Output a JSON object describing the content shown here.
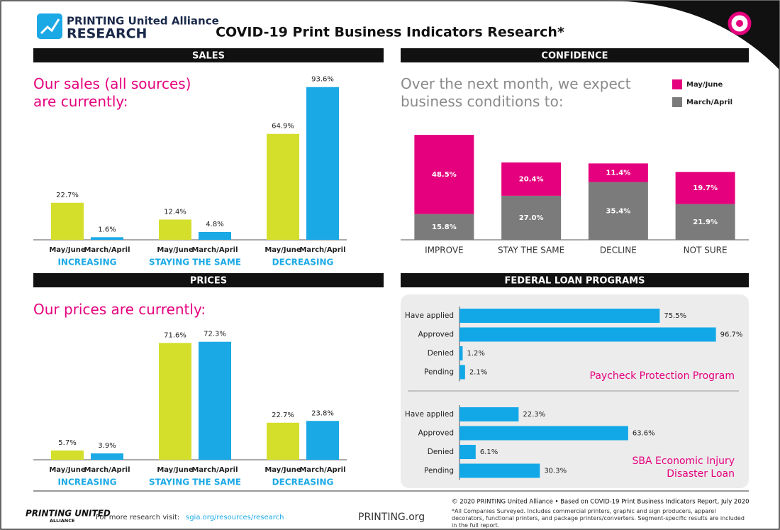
{
  "header": {
    "logo_top": "PRINTING United Alliance",
    "logo_bottom": "RESEARCH",
    "title": "COVID-19 Print Business Indicators Research*"
  },
  "chart_data": [
    {
      "type": "grouped_bar",
      "title": "SALES",
      "subtitle": "Our sales (all sources) are currently:",
      "categories": [
        "INCREASING",
        "STAYING THE SAME",
        "DECREASING"
      ],
      "series": [
        {
          "name": "May/June",
          "color": "#d4df2c",
          "values": [
            22.7,
            12.4,
            64.9
          ],
          "value_labels": [
            "22.7%",
            "12.4%",
            "64.9%"
          ]
        },
        {
          "name": "March/April",
          "color": "#1ba9e6",
          "values": [
            1.6,
            4.8,
            93.6
          ],
          "value_labels": [
            "1.6%",
            "4.8%",
            "93.6%"
          ]
        }
      ]
    },
    {
      "type": "grouped_bar",
      "title": "PRICES",
      "subtitle": "Our prices are currently:",
      "categories": [
        "INCREASING",
        "STAYING THE SAME",
        "DECREASING"
      ],
      "series": [
        {
          "name": "May/June",
          "color": "#d4df2c",
          "values": [
            5.7,
            71.6,
            22.7
          ],
          "value_labels": [
            "5.7%",
            "71.6%",
            "22.7%"
          ]
        },
        {
          "name": "March/April",
          "color": "#1ba9e6",
          "values": [
            3.9,
            72.3,
            23.8
          ],
          "value_labels": [
            "3.9%",
            "72.3%",
            "23.8%"
          ]
        }
      ]
    },
    {
      "type": "stacked_bar",
      "title": "CONFIDENCE",
      "subtitle": "Over the next month, we expect business conditions to:",
      "categories": [
        "IMPROVE",
        "STAY THE SAME",
        "DECLINE",
        "NOT SURE"
      ],
      "legend": "top-right",
      "series": [
        {
          "name": "May/June",
          "color": "#e5007d",
          "values": [
            48.5,
            20.4,
            11.4,
            19.7
          ],
          "value_labels": [
            "48.5%",
            "20.4%",
            "11.4%",
            "19.7%"
          ]
        },
        {
          "name": "March/April",
          "color": "#7b7b7b",
          "values": [
            15.8,
            27.0,
            35.4,
            21.9
          ],
          "value_labels": [
            "15.8%",
            "27.0%",
            "35.4%",
            "21.9%"
          ]
        }
      ]
    },
    {
      "type": "hbar",
      "title": "FEDERAL LOAN PROGRAMS",
      "color": "#12a8e8",
      "categories": [
        "Have applied",
        "Approved",
        "Denied",
        "Pending"
      ],
      "series": [
        {
          "name": "Paycheck Protection Program",
          "values": [
            75.5,
            96.7,
            1.2,
            2.1
          ],
          "value_labels": [
            "75.5%",
            "96.7%",
            "1.2%",
            "2.1%"
          ]
        },
        {
          "name": "SBA Economic Injury Disaster Loan",
          "values": [
            22.3,
            63.6,
            6.1,
            30.3
          ],
          "value_labels": [
            "22.3%",
            "63.6%",
            "6.1%",
            "30.3%"
          ]
        }
      ]
    }
  ],
  "footer": {
    "logo_top": "PRINTING UNITED",
    "logo_bottom": "ALLIANCE",
    "more_label": "For more research visit:",
    "more_link": "sgia.org/resources/research",
    "site": "PRINTING.org",
    "copyright": "© 2020 PRINTING United Alliance • Based on COVID-19 Print Business Indicators Report, July 2020",
    "note": "*All Companies Surveyed. Includes commercial printers, graphic and sign producers, apparel decorators, functional printers, and package printers/converters. Segment-specific results are included in the full report."
  }
}
